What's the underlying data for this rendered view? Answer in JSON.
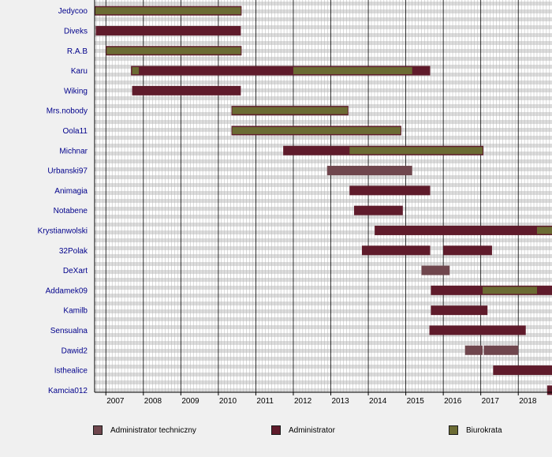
{
  "colors": {
    "background": "#f0f0f0",
    "plot_background": "#ffffff",
    "stripe": "#dcdcdc",
    "Administrator techniczny": "#6f464d",
    "Administrator": "#5f1b2b",
    "Biurokrata": "#6b6b33",
    "name_text": "#00008b"
  },
  "legend": {
    "items": [
      {
        "label": "Administrator techniczny",
        "color": "#6f464d"
      },
      {
        "label": "Administrator",
        "color": "#5f1b2b"
      },
      {
        "label": "Biurokrata",
        "color": "#6b6b33"
      }
    ]
  },
  "chart_data": {
    "type": "bar",
    "orientation": "horizontal-timeline",
    "title": "",
    "xlabel": "",
    "ylabel": "",
    "xlim": [
      2006.7,
      2018.9
    ],
    "x_ticks": [
      "2007",
      "2008",
      "2009",
      "2010",
      "2011",
      "2012",
      "2013",
      "2014",
      "2015",
      "2016",
      "2017",
      "2018"
    ],
    "grid": true,
    "legend_position": "bottom",
    "categories": [
      "Jedycoo",
      "Diveks",
      "R.A.B",
      "Karu",
      "Wiking",
      "Mrs.nobody",
      "Oola11",
      "Michnar",
      "Urbanski97",
      "Animagia",
      "Notabene",
      "Krystianwolski",
      "32Polak",
      "DeXart",
      "Addamek09",
      "Kamilb",
      "Sensualna",
      "Dawid2",
      "Isthealice",
      "Kamcia012"
    ],
    "series": [
      {
        "name": "Administrator",
        "segments": [
          {
            "user": "Jedycoo",
            "start": 2006.7,
            "end": 2010.62
          },
          {
            "user": "Diveks",
            "start": 2006.73,
            "end": 2010.6
          },
          {
            "user": "R.A.B",
            "start": 2007.0,
            "end": 2010.62
          },
          {
            "user": "Karu",
            "start": 2007.67,
            "end": 2015.65
          },
          {
            "user": "Wiking",
            "start": 2007.7,
            "end": 2010.6
          },
          {
            "user": "Mrs.nobody",
            "start": 2010.35,
            "end": 2013.47
          },
          {
            "user": "Oola11",
            "start": 2010.35,
            "end": 2014.88
          },
          {
            "user": "Michnar",
            "start": 2011.73,
            "end": 2017.07
          },
          {
            "user": "Animagia",
            "start": 2013.5,
            "end": 2015.65
          },
          {
            "user": "Notabene",
            "start": 2013.62,
            "end": 2014.92
          },
          {
            "user": "Krystianwolski",
            "start": 2014.17,
            "end": 2018.9
          },
          {
            "user": "32Polak",
            "start": 2013.83,
            "end": 2015.65
          },
          {
            "user": "32Polak",
            "start": 2016.0,
            "end": 2017.3
          },
          {
            "user": "Addamek09",
            "start": 2015.67,
            "end": 2018.9
          },
          {
            "user": "Kamilb",
            "start": 2015.67,
            "end": 2017.18
          },
          {
            "user": "Sensualna",
            "start": 2015.63,
            "end": 2018.2
          },
          {
            "user": "Isthealice",
            "start": 2017.33,
            "end": 2018.9
          },
          {
            "user": "Kamcia012",
            "start": 2018.77,
            "end": 2018.9
          }
        ]
      },
      {
        "name": "Biurokrata",
        "segments": [
          {
            "user": "Jedycoo",
            "start": 2006.72,
            "end": 2010.6
          },
          {
            "user": "R.A.B",
            "start": 2007.02,
            "end": 2010.6
          },
          {
            "user": "Karu",
            "start": 2007.7,
            "end": 2007.88
          },
          {
            "user": "Karu",
            "start": 2012.0,
            "end": 2015.17
          },
          {
            "user": "Mrs.nobody",
            "start": 2010.37,
            "end": 2013.45
          },
          {
            "user": "Oola11",
            "start": 2010.37,
            "end": 2014.86
          },
          {
            "user": "Michnar",
            "start": 2013.5,
            "end": 2017.05
          },
          {
            "user": "Krystianwolski",
            "start": 2018.5,
            "end": 2018.9
          },
          {
            "user": "Addamek09",
            "start": 2017.05,
            "end": 2018.5
          }
        ]
      },
      {
        "name": "Administrator techniczny",
        "segments": [
          {
            "user": "Urbanski97",
            "start": 2012.9,
            "end": 2015.17
          },
          {
            "user": "DeXart",
            "start": 2015.42,
            "end": 2016.17
          },
          {
            "user": "Dawid2",
            "start": 2016.58,
            "end": 2017.05
          },
          {
            "user": "Dawid2",
            "start": 2017.08,
            "end": 2018.0
          }
        ]
      }
    ]
  }
}
